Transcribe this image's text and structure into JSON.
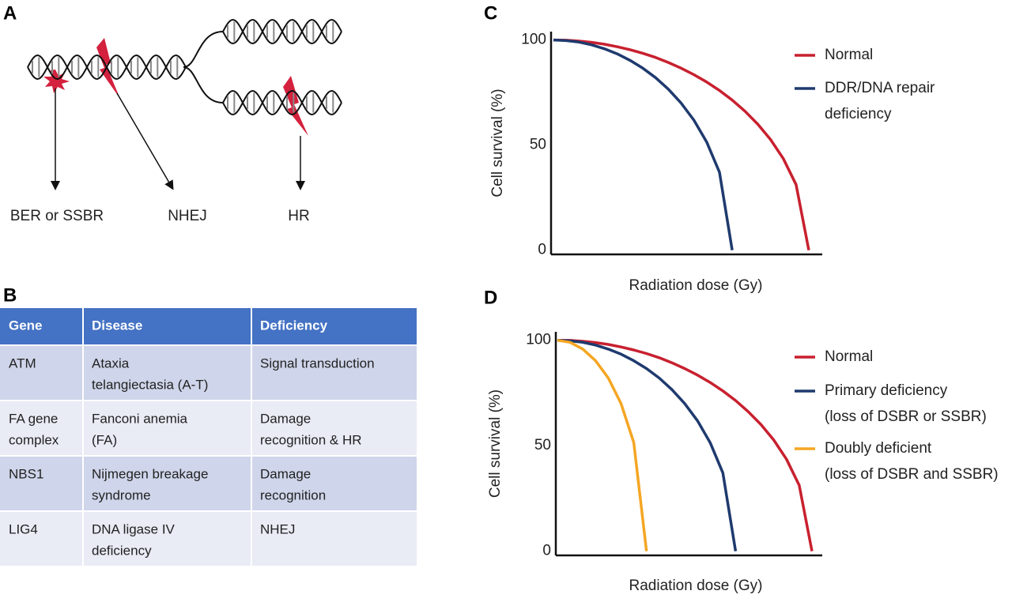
{
  "panel_labels": [
    "A",
    "B",
    "C",
    "D"
  ],
  "diagram": {
    "labels": [
      "BER or SSBR",
      "NHEJ",
      "HR"
    ]
  },
  "table": {
    "header": [
      "Gene",
      "Disease",
      "Deficiency"
    ],
    "rows": [
      [
        [
          "ATM"
        ],
        [
          "Ataxia",
          "telangiectasia (A-T)"
        ],
        [
          "Signal transduction"
        ]
      ],
      [
        [
          "FA gene",
          "complex"
        ],
        [
          "Fanconi anemia",
          "(FA)"
        ],
        [
          "Damage",
          "recognition & HR"
        ]
      ],
      [
        [
          "NBS1"
        ],
        [
          "Nijmegen breakage",
          "syndrome"
        ],
        [
          "Damage",
          "recognition"
        ]
      ],
      [
        [
          "LIG4"
        ],
        [
          "DNA ligase IV",
          "deficiency"
        ],
        [
          "NHEJ"
        ]
      ]
    ]
  },
  "chart_data": [
    {
      "type": "line",
      "ylabel": "Cell survival (%)",
      "xlabel": "Radiation dose (Gy)",
      "categories": [
        null,
        null,
        null,
        null,
        null,
        null,
        null,
        null,
        null,
        null,
        null,
        null,
        null,
        null,
        null,
        null,
        null,
        null,
        null,
        null,
        null
      ],
      "ylim": [
        -2,
        104
      ],
      "yticks": [
        0,
        50,
        100
      ],
      "series": [
        {
          "name": [
            "Normal"
          ],
          "color": "#c8202f",
          "values": [
            100,
            99.9,
            99.5,
            98.9,
            98.0,
            96.8,
            95.4,
            93.7,
            91.7,
            89.3,
            86.6,
            83.5,
            80.0,
            76.0,
            71.4,
            66.1,
            60.0,
            52.7,
            43.6,
            31.2,
            0
          ]
        },
        {
          "name": [
            "DDR/DNA repair",
            "deficiency"
          ],
          "color": "#1f3a6e",
          "values": [
            100,
            99.7,
            99.0,
            97.7,
            95.8,
            93.4,
            90.3,
            86.6,
            82.1,
            76.6,
            70.0,
            61.9,
            51.5,
            37.1,
            0,
            null,
            null,
            null,
            null,
            null,
            null
          ]
        }
      ]
    },
    {
      "type": "line",
      "ylabel": "Cell survival (%)",
      "xlabel": "Radiation dose (Gy)",
      "categories": [
        null,
        null,
        null,
        null,
        null,
        null,
        null,
        null,
        null,
        null,
        null,
        null,
        null,
        null,
        null,
        null,
        null,
        null,
        null,
        null,
        null
      ],
      "ylim": [
        -2,
        104
      ],
      "yticks": [
        0,
        50,
        100
      ],
      "series": [
        {
          "name": [
            "Normal"
          ],
          "color": "#c8202f",
          "values": [
            100,
            99.9,
            99.5,
            98.9,
            98.0,
            96.8,
            95.4,
            93.7,
            91.7,
            89.3,
            86.6,
            83.5,
            80.0,
            76.0,
            71.4,
            66.1,
            60.0,
            52.7,
            43.6,
            31.2,
            0
          ]
        },
        {
          "name": [
            "Primary deficiency",
            "(loss of DSBR or SSBR)"
          ],
          "color": "#1f3a6e",
          "values": [
            100,
            99.7,
            99.0,
            97.7,
            95.8,
            93.4,
            90.3,
            86.6,
            82.1,
            76.6,
            70.0,
            61.9,
            51.5,
            37.1,
            0,
            null,
            null,
            null,
            null,
            null,
            null
          ]
        },
        {
          "name": [
            "Doubly deficient",
            "(loss of DSBR and SSBR)"
          ],
          "color": "#f5a623",
          "values": [
            100,
            99.0,
            95.8,
            90.3,
            82.1,
            70.0,
            51.5,
            0,
            null,
            null,
            null,
            null,
            null,
            null,
            null,
            null,
            null,
            null,
            null,
            null,
            null
          ]
        }
      ]
    }
  ]
}
